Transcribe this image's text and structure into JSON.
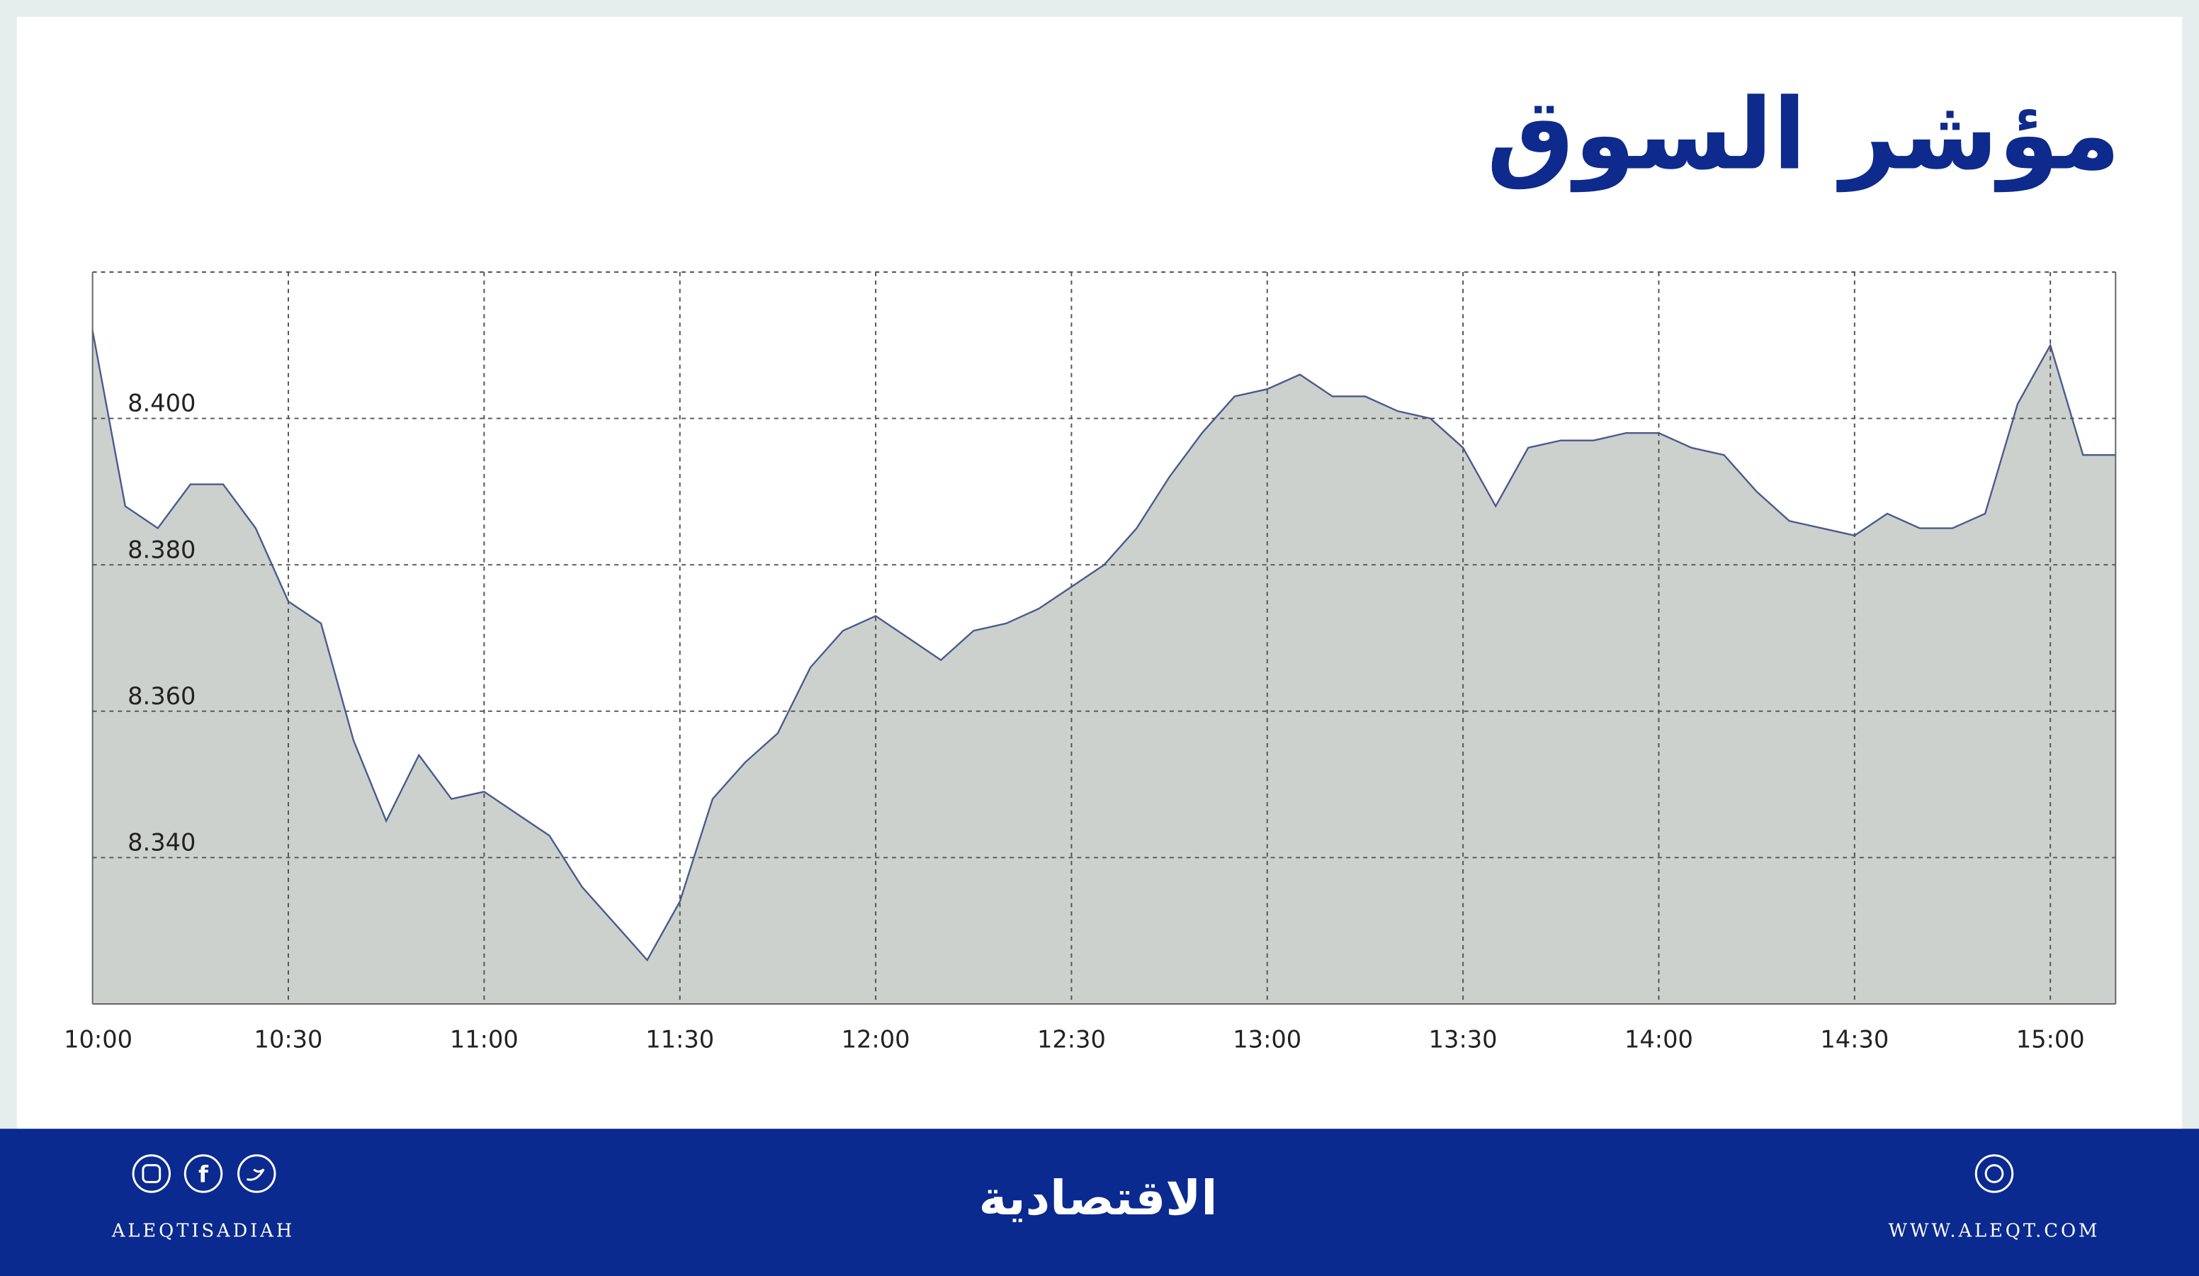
{
  "chart_data": {
    "type": "area",
    "title": "مؤشر السوق",
    "x": [
      "10:00",
      "10:05",
      "10:10",
      "10:15",
      "10:20",
      "10:25",
      "10:30",
      "10:35",
      "10:40",
      "10:45",
      "10:50",
      "10:55",
      "11:00",
      "11:05",
      "11:10",
      "11:15",
      "11:20",
      "11:25",
      "11:30",
      "11:35",
      "11:40",
      "11:45",
      "11:50",
      "11:55",
      "12:00",
      "12:05",
      "12:10",
      "12:15",
      "12:20",
      "12:25",
      "12:30",
      "12:35",
      "12:40",
      "12:45",
      "12:50",
      "12:55",
      "13:00",
      "13:05",
      "13:10",
      "13:15",
      "13:20",
      "13:25",
      "13:30",
      "13:35",
      "13:40",
      "13:45",
      "13:50",
      "13:55",
      "14:00",
      "14:05",
      "14:10",
      "14:15",
      "14:20",
      "14:25",
      "14:30",
      "14:35",
      "14:40",
      "14:45",
      "14:50",
      "14:55",
      "15:00",
      "15:05",
      "15:10"
    ],
    "values": [
      8.412,
      8.388,
      8.385,
      8.391,
      8.391,
      8.385,
      8.375,
      8.372,
      8.356,
      8.345,
      8.354,
      8.348,
      8.349,
      8.346,
      8.343,
      8.336,
      8.331,
      8.326,
      8.334,
      8.348,
      8.353,
      8.357,
      8.366,
      8.371,
      8.373,
      8.37,
      8.367,
      8.371,
      8.372,
      8.374,
      8.377,
      8.38,
      8.385,
      8.392,
      8.398,
      8.403,
      8.404,
      8.406,
      8.403,
      8.403,
      8.401,
      8.4,
      8.396,
      8.388,
      8.396,
      8.397,
      8.397,
      8.398,
      8.398,
      8.396,
      8.395,
      8.39,
      8.386,
      8.385,
      8.384,
      8.387,
      8.385,
      8.385,
      8.387,
      8.402,
      8.41,
      8.395,
      8.395
    ],
    "color": "#4a5a8c",
    "fill": "#cdd1ce",
    "xlim": [
      "10:00",
      "15:10"
    ],
    "xticks": [
      "10:00",
      "10:30",
      "11:00",
      "11:30",
      "12:00",
      "12:30",
      "13:00",
      "13:30",
      "14:00",
      "14:30",
      "15:00"
    ],
    "ylim": [
      8.32,
      8.42
    ],
    "yticks": [
      {
        "value": 8.34,
        "label": "8.340"
      },
      {
        "value": 8.36,
        "label": "8.360"
      },
      {
        "value": 8.38,
        "label": "8.380"
      },
      {
        "value": 8.4,
        "label": "8.400"
      }
    ],
    "grid": true
  },
  "footer": {
    "brand": "الاقتصادية",
    "handle": "ALEQTISADIAH",
    "website": "WWW.ALEQT.COM"
  }
}
